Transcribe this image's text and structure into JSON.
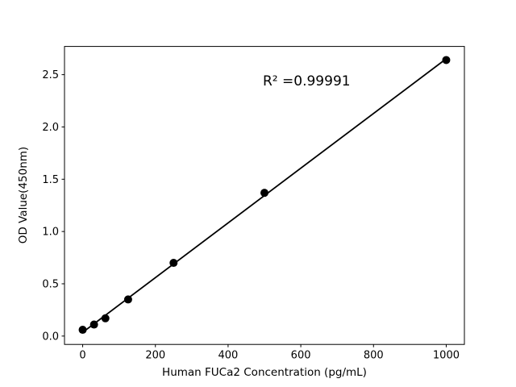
{
  "chart_data": {
    "type": "scatter",
    "title": "",
    "xlabel": "Human FUCa2 Concentration (pg/mL)",
    "ylabel": "OD Value(450nm)",
    "annotation": "R² =0.99991",
    "x": [
      0,
      31.25,
      62.5,
      125,
      250,
      500,
      1000
    ],
    "y": [
      0.06,
      0.11,
      0.17,
      0.35,
      0.7,
      1.37,
      2.64
    ],
    "fit_line": true,
    "marker": "circle",
    "xticks": {
      "values": [
        0,
        200,
        400,
        600,
        800,
        1000
      ],
      "labels": [
        "0",
        "200",
        "400",
        "600",
        "800",
        "1000"
      ]
    },
    "yticks": {
      "values": [
        0,
        0.5,
        1,
        1.5,
        2,
        2.5
      ],
      "labels": [
        "0.0",
        "0.5",
        "1.0",
        "1.5",
        "2.0",
        "2.5"
      ]
    },
    "xlim": [
      -50,
      1050
    ],
    "ylim": [
      -0.08,
      2.77
    ],
    "grid": false,
    "legend": "none",
    "colors": {
      "line": "#000000",
      "marker": "#000000",
      "axes": "#000000",
      "text": "#000000",
      "background": "#ffffff"
    }
  }
}
